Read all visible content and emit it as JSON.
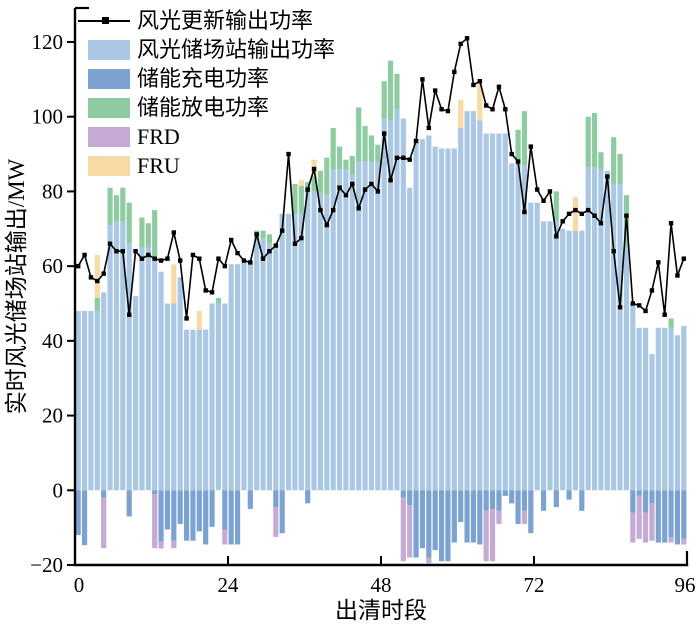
{
  "figure": {
    "type": "stacked-bar-line-chart",
    "background": "#ffffff"
  },
  "chart_data": {
    "type": "bar",
    "title": "",
    "xlabel": "出清时段",
    "ylabel": "实时风光储场站输出/MW",
    "x_ticks": [
      0,
      24,
      48,
      72,
      96
    ],
    "y_ticks": [
      -20,
      0,
      20,
      40,
      60,
      80,
      100,
      120
    ],
    "xlim": [
      0,
      96
    ],
    "ylim": [
      -20,
      129
    ],
    "grid": false,
    "legend_position": "upper-left-inside",
    "legend": [
      {
        "label": "风光更新输出功率",
        "type": "line-marker",
        "color": "#000000"
      },
      {
        "label": "风光储场站输出功率",
        "type": "bar",
        "color": "#aac7e3"
      },
      {
        "label": "储能充电功率",
        "type": "bar",
        "color": "#7ba2d0"
      },
      {
        "label": "储能放电功率",
        "type": "bar",
        "color": "#8fcba0"
      },
      {
        "label": "FRD",
        "type": "bar",
        "color": "#c5aad3"
      },
      {
        "label": "FRU",
        "type": "bar",
        "color": "#f8daa7"
      }
    ],
    "series": [
      {
        "name": "风光储场站输出功率",
        "role": "station_output",
        "color": "#aac7e3",
        "values": [
          48,
          48,
          48,
          48,
          53,
          71,
          72,
          72,
          66,
          52,
          65,
          65,
          62,
          58.5,
          50,
          50,
          57,
          43,
          43,
          43,
          43,
          50,
          50,
          50,
          60.5,
          60.5,
          61,
          61,
          67,
          67.5,
          66,
          66,
          74,
          74,
          74,
          74,
          79.5,
          80,
          79.5,
          79,
          86,
          86,
          86,
          84.5,
          88,
          88,
          88,
          88,
          99.5,
          99,
          102,
          99.5,
          81,
          94,
          94,
          95,
          92,
          91.5,
          91.5,
          91.5,
          97,
          101.5,
          101.5,
          99,
          95.5,
          95.5,
          95.5,
          95.5,
          87.5,
          87,
          87,
          77,
          77,
          72,
          72,
          72,
          70,
          69.5,
          69.5,
          69.5,
          86.5,
          86.5,
          86,
          85.5,
          82,
          82,
          65,
          50,
          43.5,
          43.5,
          36.5,
          43.5,
          43.5,
          43.5,
          41.5,
          44
        ]
      },
      {
        "name": "储能放电功率",
        "role": "discharge_stacked_above",
        "color": "#8fcba0",
        "values": [
          0,
          0,
          0,
          3.5,
          0,
          10,
          7,
          9,
          11,
          0,
          8,
          6.5,
          13,
          0,
          0,
          0,
          0,
          0,
          0,
          0,
          0,
          0,
          1.5,
          0,
          0,
          0,
          0,
          0,
          2.5,
          2,
          2.5,
          0,
          0,
          0,
          8,
          7.5,
          3,
          4,
          6,
          10,
          11,
          6,
          2.5,
          5,
          14.5,
          9.5,
          7,
          4.5,
          10,
          16,
          9.5,
          0,
          0,
          0,
          0,
          0,
          0,
          0,
          0,
          0,
          0,
          0,
          0,
          0,
          0,
          0,
          0,
          0,
          0,
          9.5,
          14.5,
          0,
          0,
          0,
          0,
          8,
          0,
          0,
          0,
          0,
          13.5,
          14.5,
          4.5,
          0,
          12.5,
          8,
          14,
          0,
          0,
          0,
          0,
          0,
          0,
          2.5,
          0,
          0
        ]
      },
      {
        "name": "FRU",
        "role": "fru_stacked_top",
        "color": "#f8daa7",
        "values": [
          0,
          0,
          0,
          11.5,
          0,
          0,
          0,
          0,
          0,
          0,
          0,
          0,
          0,
          0,
          0,
          10.5,
          0,
          0,
          0,
          5,
          0,
          0,
          0,
          0,
          0,
          0,
          0,
          0,
          0,
          0,
          0,
          0,
          0,
          0,
          0,
          1.5,
          0,
          4.5,
          0,
          0,
          0,
          0,
          0,
          0,
          0,
          0,
          0,
          0,
          0,
          0,
          0,
          0,
          0,
          0,
          0,
          0,
          0,
          0,
          0,
          0,
          7.5,
          0,
          0,
          11,
          0,
          0,
          0,
          0,
          0,
          0,
          0,
          0,
          0,
          0,
          0,
          0,
          0,
          0,
          9,
          0,
          0,
          0,
          0,
          0,
          0,
          0,
          0,
          0,
          0,
          0,
          0,
          0,
          0,
          0,
          0,
          0
        ]
      },
      {
        "name": "储能充电功率",
        "role": "charge_negative",
        "color": "#7ba2d0",
        "values": [
          -12,
          -14.7,
          0,
          0,
          -2,
          0,
          0,
          0,
          -7,
          0,
          0,
          0,
          -1,
          -13.8,
          -10.5,
          -13.5,
          -9,
          -13.5,
          -13.5,
          -11,
          -14.5,
          -9.8,
          0,
          -10.5,
          -14.5,
          -14.5,
          0,
          -5,
          0,
          0,
          0,
          -4.5,
          -11.5,
          0,
          0,
          0,
          -3.5,
          0,
          0,
          0,
          0,
          0,
          0,
          0,
          0,
          0,
          0,
          0,
          0,
          0,
          0,
          -2,
          -4,
          -18,
          -15.5,
          -18,
          -16,
          -19,
          -19,
          -14,
          -8.5,
          -14,
          -14,
          -14.5,
          -5.5,
          -5,
          -5.5,
          -1.5,
          -3.5,
          -9,
          -5.5,
          -11.5,
          0,
          -5.5,
          0,
          -4.5,
          0,
          -2.5,
          0,
          -5.5,
          0,
          0,
          0,
          0,
          0,
          0,
          0,
          -6,
          -1.5,
          -6,
          -3.5,
          -14,
          -14,
          -12.5,
          -14.5,
          -13
        ]
      },
      {
        "name": "FRD",
        "role": "frd_stacked_below",
        "color": "#c5aad3",
        "values": [
          0,
          0,
          0,
          0,
          13.5,
          0,
          0,
          0,
          0,
          0,
          0,
          0,
          14.5,
          1.8,
          0,
          2,
          0,
          0,
          0,
          0,
          0,
          0,
          0,
          4,
          0,
          0,
          0,
          0,
          0,
          0,
          0,
          8,
          0,
          0,
          0,
          0,
          0,
          0,
          0,
          0,
          0,
          0,
          0,
          0,
          0,
          0,
          0,
          0,
          0,
          0,
          0,
          17,
          14,
          0,
          0,
          1.5,
          0,
          0,
          0,
          0,
          0,
          0,
          0,
          0,
          13.5,
          14,
          3.5,
          0,
          0,
          0,
          3.5,
          0,
          0,
          0,
          0,
          0,
          0,
          0,
          0,
          0,
          0,
          0,
          0,
          0,
          0,
          0,
          0,
          8,
          11.5,
          8,
          10,
          0,
          0,
          1.5,
          0,
          1.5
        ]
      },
      {
        "name": "风光更新输出功率",
        "role": "line",
        "color": "#000000",
        "values": [
          60,
          63,
          57,
          56,
          58,
          66,
          64,
          64,
          47,
          64,
          62,
          63,
          62,
          61.5,
          62,
          69,
          61.5,
          46,
          63,
          62,
          53.5,
          53,
          62,
          60,
          67,
          63.5,
          61.5,
          61,
          68.5,
          62,
          64,
          65.5,
          69.5,
          90,
          66,
          67.5,
          80.5,
          86,
          75,
          71,
          75,
          81,
          79,
          82,
          75.5,
          80.5,
          82,
          80,
          95.5,
          83,
          89,
          89,
          88.5,
          93.5,
          110,
          97,
          107,
          102,
          101.5,
          112,
          119.5,
          121,
          108.5,
          109.5,
          103,
          102,
          108,
          102,
          90,
          88,
          74.5,
          92,
          80.5,
          77.5,
          80,
          68,
          72,
          74,
          75,
          74,
          75,
          73.5,
          71.5,
          84,
          64,
          49,
          73.5,
          50,
          49.5,
          48,
          53.5,
          61,
          47,
          71.5,
          57.5,
          62
        ]
      }
    ]
  },
  "axes": {
    "x_label": "出清时段",
    "y_label": "实时风光储场站输出/MW",
    "x_tick_labels": [
      "0",
      "24",
      "48",
      "72",
      "96"
    ],
    "y_tick_labels": [
      "-20",
      "0",
      "20",
      "40",
      "60",
      "80",
      "100",
      "120"
    ]
  }
}
